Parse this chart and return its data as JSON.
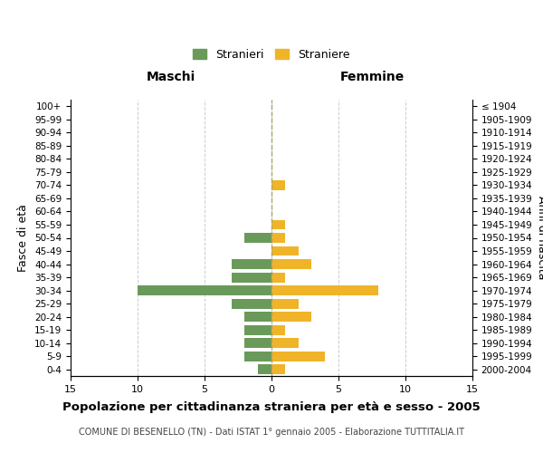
{
  "age_groups": [
    "100+",
    "95-99",
    "90-94",
    "85-89",
    "80-84",
    "75-79",
    "70-74",
    "65-69",
    "60-64",
    "55-59",
    "50-54",
    "45-49",
    "40-44",
    "35-39",
    "30-34",
    "25-29",
    "20-24",
    "15-19",
    "10-14",
    "5-9",
    "0-4"
  ],
  "birth_years": [
    "≤ 1904",
    "1905-1909",
    "1910-1914",
    "1915-1919",
    "1920-1924",
    "1925-1929",
    "1930-1934",
    "1935-1939",
    "1940-1944",
    "1945-1949",
    "1950-1954",
    "1955-1959",
    "1960-1964",
    "1965-1969",
    "1970-1974",
    "1975-1979",
    "1980-1984",
    "1985-1989",
    "1990-1994",
    "1995-1999",
    "2000-2004"
  ],
  "males": [
    0,
    0,
    0,
    0,
    0,
    0,
    0,
    0,
    0,
    0,
    2,
    0,
    3,
    3,
    10,
    3,
    2,
    2,
    2,
    2,
    1
  ],
  "females": [
    0,
    0,
    0,
    0,
    0,
    0,
    1,
    0,
    0,
    1,
    1,
    2,
    3,
    1,
    8,
    2,
    3,
    1,
    2,
    4,
    1
  ],
  "male_color": "#6a9a5a",
  "female_color": "#f0b429",
  "title": "Popolazione per cittadinanza straniera per età e sesso - 2005",
  "subtitle": "COMUNE DI BESENELLO (TN) - Dati ISTAT 1° gennaio 2005 - Elaborazione TUTTITALIA.IT",
  "xlabel_left": "Maschi",
  "xlabel_right": "Femmine",
  "ylabel_left": "Fasce di età",
  "ylabel_right": "Anni di nascita",
  "legend_male": "Stranieri",
  "legend_female": "Straniere",
  "xlim": 15,
  "background_color": "#ffffff",
  "grid_color": "#cccccc"
}
